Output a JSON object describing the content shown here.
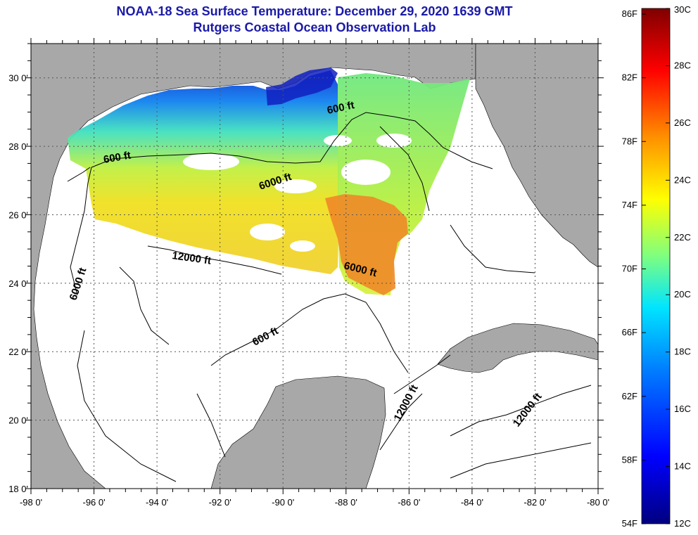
{
  "title_line1": "NOAA-18 Sea Surface Temperature:  December 29, 2020 1639 GMT",
  "title_line2": "Rutgers Coastal Ocean Observation Lab",
  "map": {
    "lon_range": [
      -98,
      -80
    ],
    "lat_range": [
      18,
      31
    ],
    "lon_ticks": [
      "-98 0'",
      "-96 0'",
      "-94 0'",
      "-92 0'",
      "-90 0'",
      "-88 0'",
      "-86 0'",
      "-84 0'",
      "-82 0'",
      "-80 0'"
    ],
    "lat_ticks": [
      "30 0'",
      "28 0'",
      "26 0'",
      "24 0'",
      "22 0'",
      "20 0'",
      "18 0'"
    ],
    "contour_labels": [
      "600 ft",
      "600 ft",
      "600 ft",
      "6000 ft",
      "6000 ft",
      "6000 ft",
      "12000 ft",
      "12000 ft",
      "12000 ft"
    ],
    "colors": {
      "land": "#a8a8a8",
      "ocean": "#ffffff",
      "grid": "#555555"
    }
  },
  "colorbar": {
    "fahrenheit_labels": [
      "86F",
      "82F",
      "78F",
      "74F",
      "70F",
      "66F",
      "62F",
      "58F",
      "54F"
    ],
    "celsius_labels": [
      "30C",
      "28C",
      "26C",
      "24C",
      "22C",
      "20C",
      "18C",
      "16C",
      "14C",
      "12C"
    ],
    "range_c": [
      12,
      30
    ],
    "colors": [
      "#00007f",
      "#0000ff",
      "#007fff",
      "#00ffff",
      "#7fff7f",
      "#ffff00",
      "#ff7f00",
      "#ff0000",
      "#7f0000"
    ]
  }
}
